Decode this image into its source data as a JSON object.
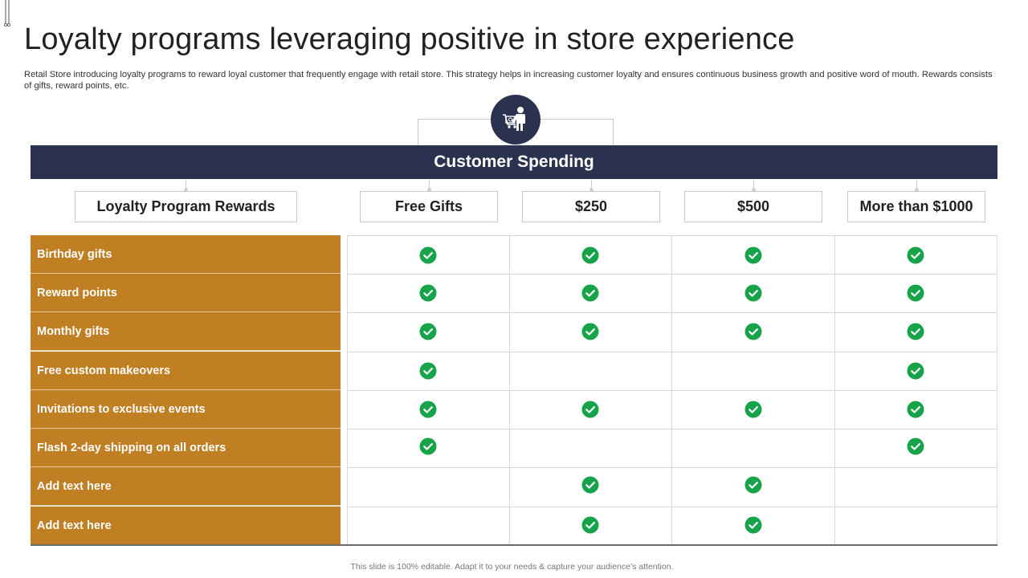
{
  "slide": {
    "title": "Loyalty programs leveraging positive in store experience",
    "subtitle": "Retail Store introducing loyalty programs to reward loyal customer that frequently engage with retail store. This strategy helps in increasing customer loyalty and ensures continuous business growth and positive word of mouth. Rewards consists of gifts, reward points, etc.",
    "footer": "This slide is 100% editable. Adapt it to your needs & capture your audience’s attention."
  },
  "table": {
    "header": "Customer Spending",
    "icon": "shopping-cart-person-icon",
    "columns": [
      "Loyalty Program Rewards",
      "Free Gifts",
      "$250",
      "$500",
      "More than $1000"
    ],
    "rows": [
      {
        "label": "Birthday gifts",
        "checks": [
          true,
          true,
          true,
          true
        ]
      },
      {
        "label": "Reward points",
        "checks": [
          true,
          true,
          true,
          true
        ]
      },
      {
        "label": "Monthly gifts",
        "checks": [
          true,
          true,
          true,
          true
        ]
      },
      {
        "label": "Free custom makeovers",
        "checks": [
          true,
          false,
          false,
          true
        ]
      },
      {
        "label": "Invitations to exclusive events",
        "checks": [
          true,
          true,
          true,
          true
        ]
      },
      {
        "label": "Flash 2-day shipping on all orders",
        "checks": [
          true,
          false,
          false,
          true
        ]
      },
      {
        "label": "Add  text here",
        "checks": [
          false,
          true,
          true,
          false
        ]
      },
      {
        "label": "Add  text here",
        "checks": [
          false,
          true,
          true,
          false
        ]
      }
    ]
  },
  "colors": {
    "header_navy": "#2b3250",
    "row_label_gold": "#c07f22",
    "check_green": "#16a34a"
  }
}
